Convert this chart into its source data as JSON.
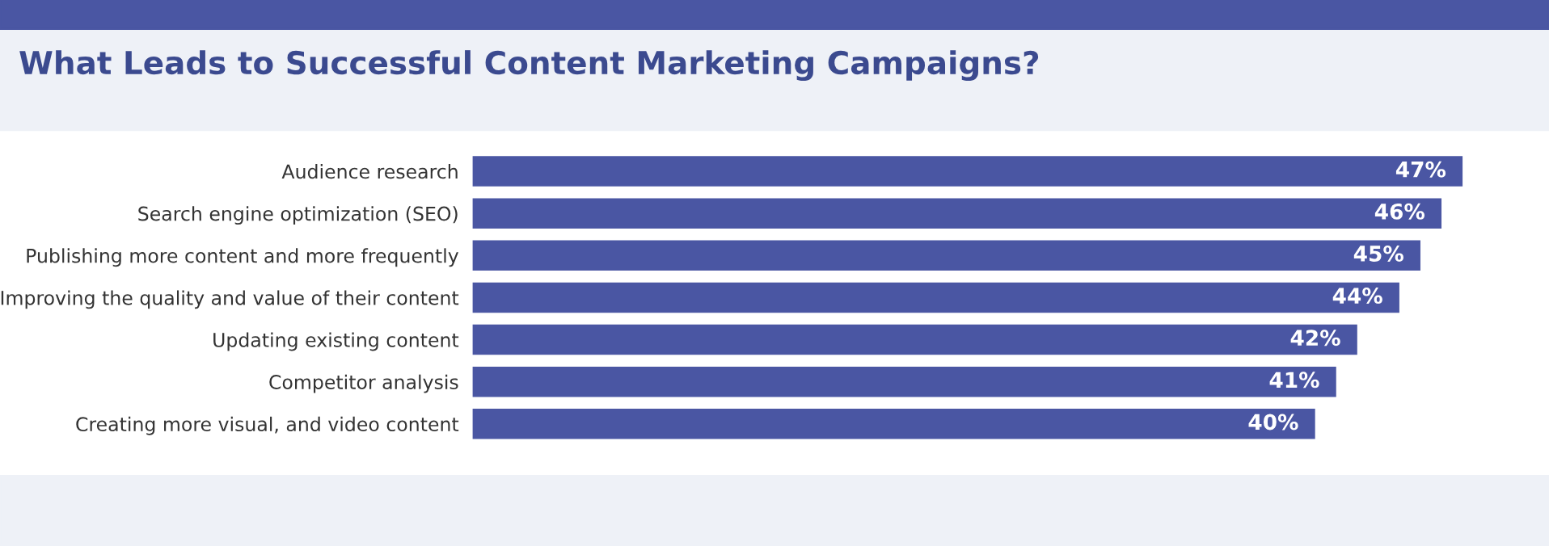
{
  "chart_data": {
    "type": "bar",
    "orientation": "horizontal",
    "title": "What Leads to Successful Content Marketing Campaigns?",
    "categories": [
      "Audience research",
      "Search engine optimization (SEO)",
      "Publishing more content and more frequently",
      "Improving the quality and value of their content",
      "Updating existing content",
      "Competitor analysis",
      "Creating more visual, and video content"
    ],
    "values": [
      47,
      46,
      45,
      44,
      42,
      41,
      40
    ],
    "value_labels": [
      "47%",
      "46%",
      "45%",
      "44%",
      "42%",
      "41%",
      "40%"
    ],
    "color": "#4a56a3",
    "tick_labels": false,
    "grid": false,
    "legend": false
  }
}
